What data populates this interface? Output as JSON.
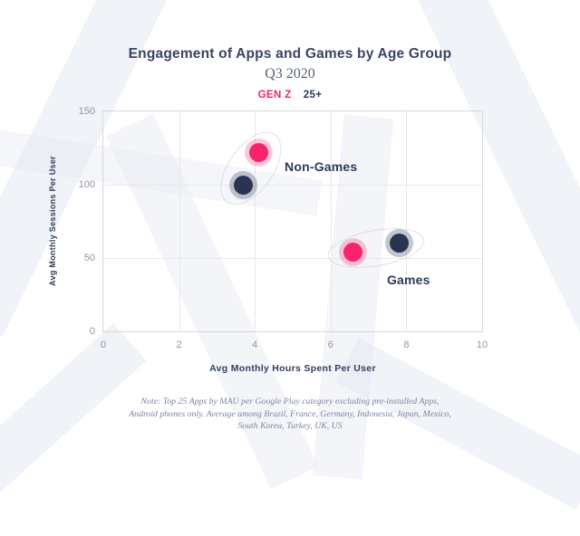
{
  "title": "Engagement of Apps and Games by Age Group",
  "subtitle": "Q3 2020",
  "legend": [
    {
      "label": "GEN Z",
      "color": "#f0246b"
    },
    {
      "label": "25+",
      "color": "#2e3a59"
    }
  ],
  "chart_data": {
    "type": "scatter",
    "title": "Engagement of Apps and Games by Age Group",
    "subtitle": "Q3 2020",
    "xlabel": "Avg Monthly Hours Spent Per User",
    "ylabel": "Avg Monthly Sessions Per User",
    "xlim": [
      0,
      10
    ],
    "ylim": [
      0,
      150
    ],
    "xticks": [
      0,
      2,
      4,
      6,
      8,
      10
    ],
    "yticks": [
      0,
      50,
      100,
      150
    ],
    "grid": true,
    "legend_position": "top-center",
    "series": [
      {
        "name": "GEN Z",
        "color": "#f8246b",
        "halo": "rgba(247,36,107,0.25)"
      },
      {
        "name": "25+",
        "color": "#2b3352",
        "halo": "rgba(43,51,82,0.28)"
      }
    ],
    "groups": [
      {
        "label": "Non-Games",
        "points": [
          {
            "series": "GEN Z",
            "x": 4.1,
            "y": 122
          },
          {
            "series": "25+",
            "x": 3.7,
            "y": 100
          }
        ]
      },
      {
        "label": "Games",
        "points": [
          {
            "series": "GEN Z",
            "x": 6.6,
            "y": 54
          },
          {
            "series": "25+",
            "x": 7.8,
            "y": 60
          }
        ]
      }
    ]
  },
  "note": {
    "lines": [
      "Note: Top 25 Apps by MAU per Google Play category excluding pre-installed Apps,",
      "Android phones only. Average among Brazil, France, Germany, Indonesia, Japan, Mexico,",
      "South Korea, Turkey, UK, US"
    ]
  }
}
